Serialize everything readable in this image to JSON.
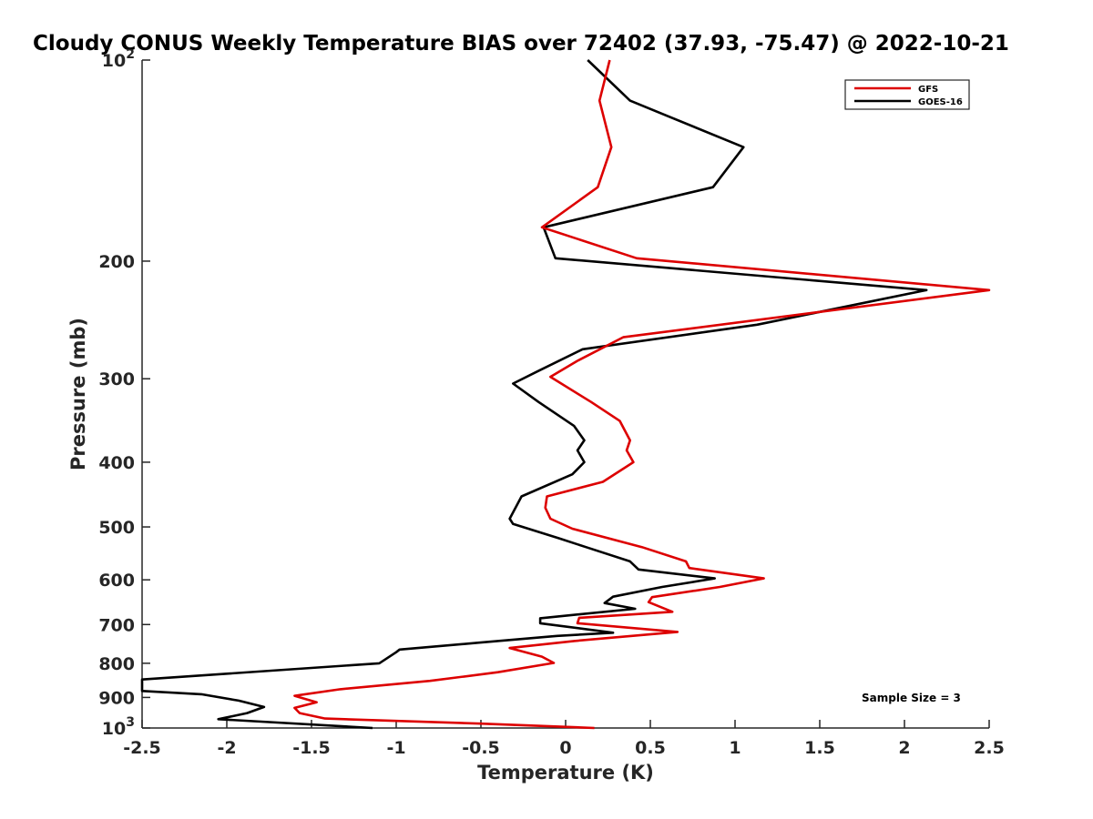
{
  "chart_data": {
    "type": "line",
    "title": "Cloudy CONUS Weekly Temperature BIAS over 72402 (37.93, -75.47) @ 2022-10-21",
    "xlabel": "Temperature (K)",
    "ylabel": "Pressure (mb)",
    "xlim": [
      -2.5,
      2.5
    ],
    "ylim": [
      1000,
      100
    ],
    "yscale": "log",
    "y_reversed": true,
    "xticks": [
      "-2.5",
      "-2",
      "-1.5",
      "-1",
      "-0.5",
      "0",
      "0.5",
      "1",
      "1.5",
      "2",
      "2.5"
    ],
    "xtick_values": [
      -2.5,
      -2,
      -1.5,
      -1,
      -0.5,
      0,
      0.5,
      1,
      1.5,
      2,
      2.5
    ],
    "yticks": [
      {
        "value": 100,
        "base": "10",
        "exp": "2"
      },
      {
        "value": 200,
        "label": "200"
      },
      {
        "value": 300,
        "label": "300"
      },
      {
        "value": 400,
        "label": "400"
      },
      {
        "value": 500,
        "label": "500"
      },
      {
        "value": 600,
        "label": "600"
      },
      {
        "value": 700,
        "label": "700"
      },
      {
        "value": 800,
        "label": "800"
      },
      {
        "value": 900,
        "label": "900"
      },
      {
        "value": 1000,
        "base": "10",
        "exp": "3"
      }
    ],
    "legend_position": "top-right",
    "annotation": "Sample Size = 3",
    "series": [
      {
        "name": "GFS",
        "color": "#dd0000",
        "points": [
          [
            0.26,
            100
          ],
          [
            0.2,
            115
          ],
          [
            0.27,
            135
          ],
          [
            0.19,
            155
          ],
          [
            -0.14,
            178
          ],
          [
            0.42,
            198
          ],
          [
            2.5,
            221
          ],
          [
            0.34,
            260
          ],
          [
            0.07,
            282
          ],
          [
            -0.09,
            298
          ],
          [
            0.15,
            325
          ],
          [
            0.32,
            347
          ],
          [
            0.38,
            371
          ],
          [
            0.36,
            384
          ],
          [
            0.4,
            400
          ],
          [
            0.22,
            428
          ],
          [
            -0.11,
            450
          ],
          [
            -0.12,
            468
          ],
          [
            -0.09,
            486
          ],
          [
            0.04,
            503
          ],
          [
            0.45,
            536
          ],
          [
            0.71,
            563
          ],
          [
            0.73,
            576
          ],
          [
            1.17,
            597
          ],
          [
            0.91,
            615
          ],
          [
            0.51,
            637
          ],
          [
            0.49,
            648
          ],
          [
            0.63,
            670
          ],
          [
            0.08,
            684
          ],
          [
            0.07,
            697
          ],
          [
            0.66,
            718
          ],
          [
            0.05,
            741
          ],
          [
            -0.33,
            759
          ],
          [
            -0.14,
            782
          ],
          [
            -0.07,
            799
          ],
          [
            -0.4,
            825
          ],
          [
            -0.8,
            850
          ],
          [
            -1.33,
            875
          ],
          [
            -1.6,
            895
          ],
          [
            -1.47,
            915
          ],
          [
            -1.6,
            933
          ],
          [
            -1.57,
            950
          ],
          [
            -1.42,
            968
          ],
          [
            -0.5,
            985
          ],
          [
            0.17,
            1000
          ]
        ]
      },
      {
        "name": "GOES-16",
        "color": "#000000",
        "points": [
          [
            0.13,
            100
          ],
          [
            0.38,
            115
          ],
          [
            1.05,
            135
          ],
          [
            0.87,
            155
          ],
          [
            -0.13,
            178
          ],
          [
            -0.06,
            198
          ],
          [
            2.13,
            221
          ],
          [
            1.13,
            249
          ],
          [
            0.1,
            271
          ],
          [
            -0.16,
            292
          ],
          [
            -0.31,
            305
          ],
          [
            -0.16,
            325
          ],
          [
            0.05,
            353
          ],
          [
            0.11,
            371
          ],
          [
            0.07,
            384
          ],
          [
            0.11,
            400
          ],
          [
            0.04,
            417
          ],
          [
            -0.26,
            450
          ],
          [
            -0.33,
            486
          ],
          [
            -0.31,
            495
          ],
          [
            -0.04,
            520
          ],
          [
            0.12,
            536
          ],
          [
            0.38,
            563
          ],
          [
            0.43,
            579
          ],
          [
            0.88,
            597
          ],
          [
            0.57,
            615
          ],
          [
            0.28,
            636
          ],
          [
            0.23,
            650
          ],
          [
            0.41,
            663
          ],
          [
            -0.15,
            685
          ],
          [
            -0.15,
            697
          ],
          [
            0.28,
            720
          ],
          [
            -0.05,
            728
          ],
          [
            -0.51,
            745
          ],
          [
            -0.98,
            763
          ],
          [
            -1.0,
            770
          ],
          [
            -1.1,
            800
          ],
          [
            -2.5,
            846
          ],
          [
            -2.5,
            880
          ],
          [
            -2.15,
            890
          ],
          [
            -1.93,
            910
          ],
          [
            -1.78,
            930
          ],
          [
            -1.88,
            950
          ],
          [
            -2.05,
            970
          ],
          [
            -1.14,
            1000
          ]
        ]
      }
    ]
  }
}
